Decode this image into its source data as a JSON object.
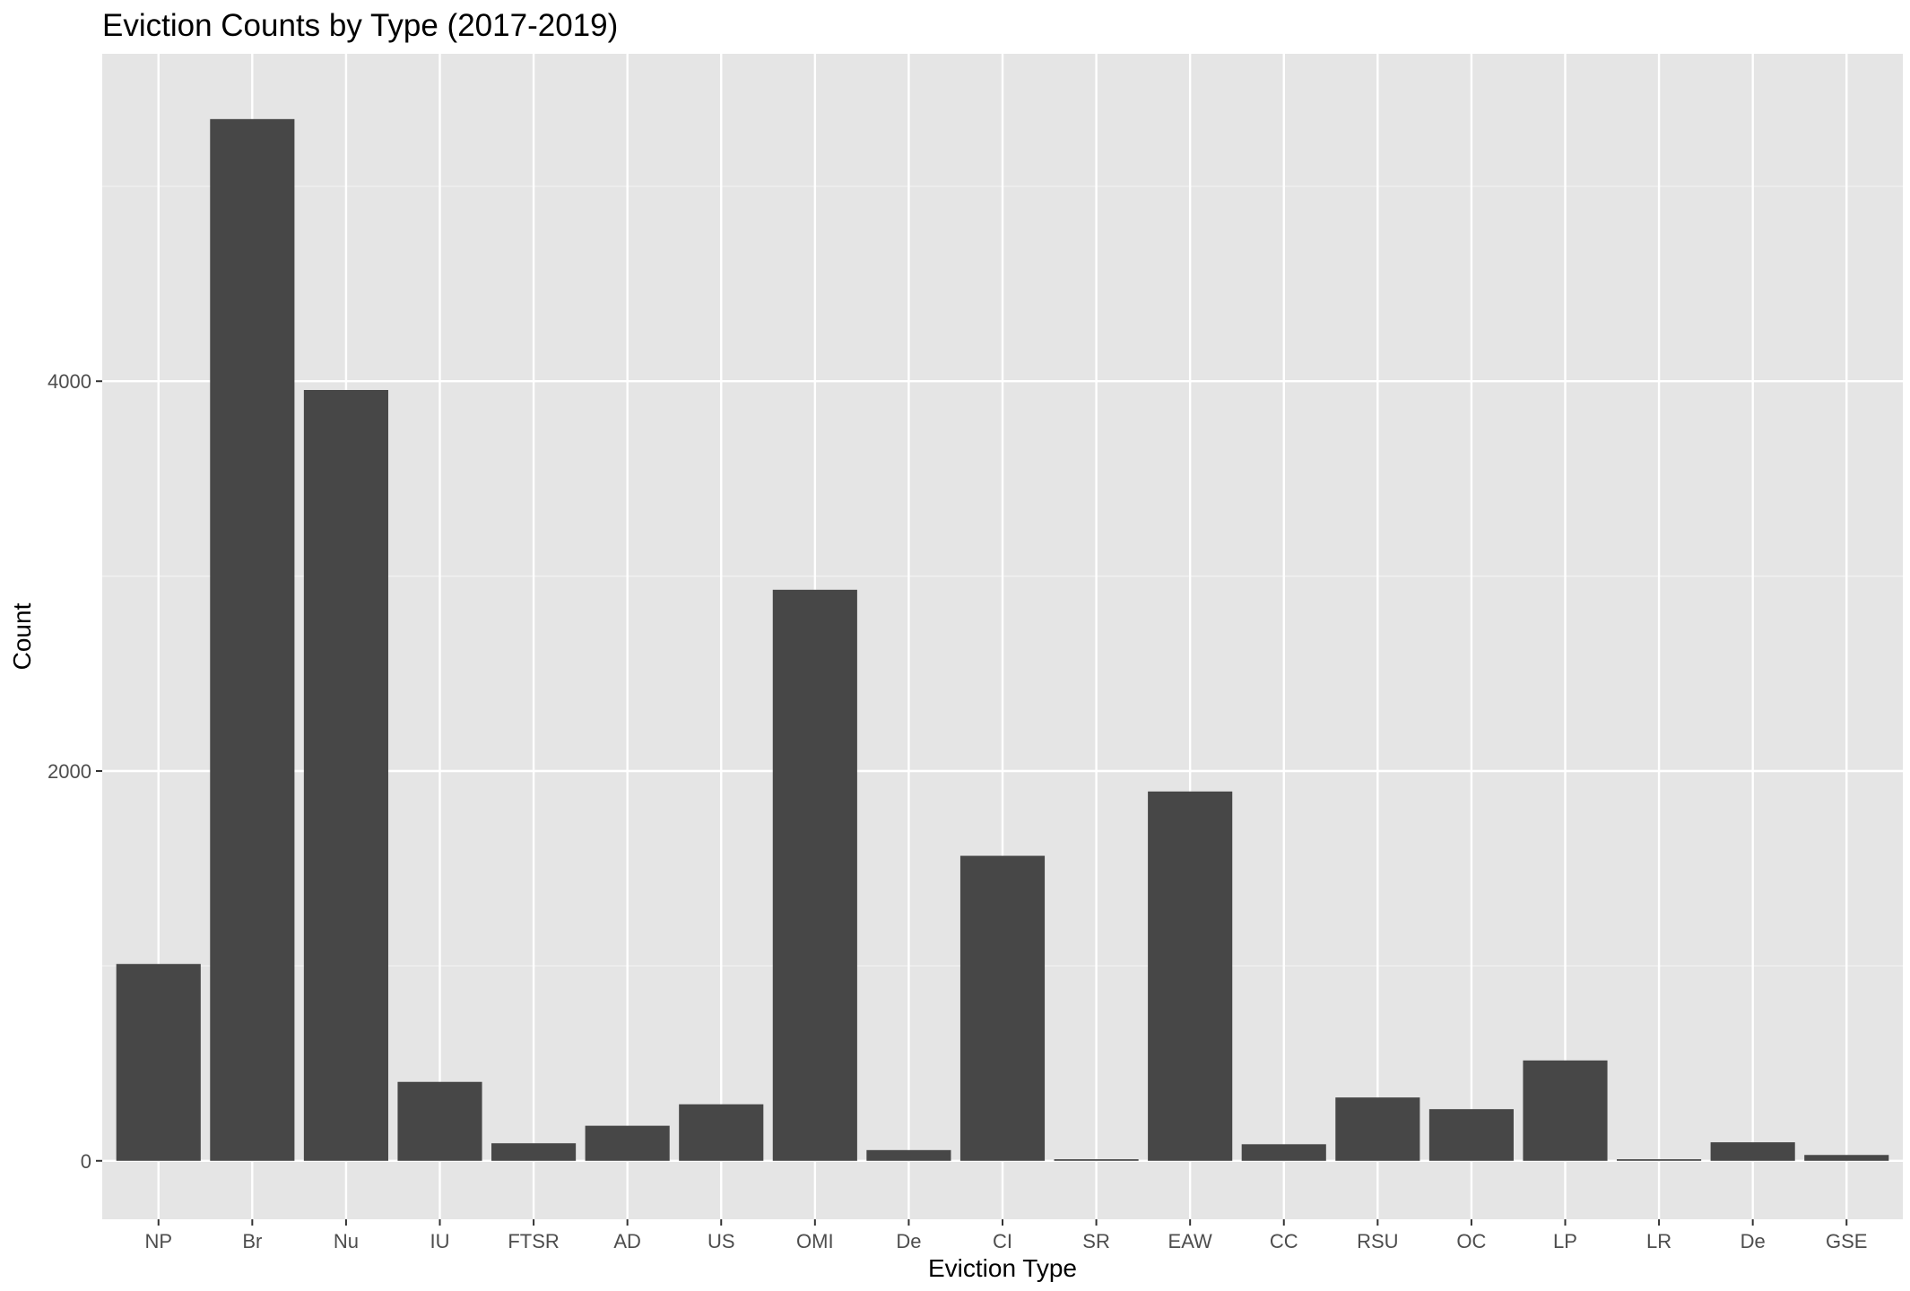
{
  "chart_data": {
    "type": "bar",
    "title": "Eviction Counts by Type (2017-2019)",
    "xlabel": "Eviction Type",
    "ylabel": "Count",
    "categories": [
      "NP",
      "Br",
      "Nu",
      "IU",
      "FTSR",
      "AD",
      "US",
      "OMI",
      "De",
      "CI",
      "SR",
      "EAW",
      "CC",
      "RSU",
      "OC",
      "LP",
      "LR",
      "De",
      "GSE"
    ],
    "values": [
      1010,
      5345,
      3955,
      405,
      90,
      180,
      290,
      2930,
      55,
      1565,
      8,
      1895,
      85,
      325,
      265,
      515,
      8,
      95,
      30
    ],
    "ylim": [
      -300,
      5680
    ],
    "yticks": [
      0,
      2000,
      4000
    ],
    "grid": true,
    "legend": "none",
    "colors": {
      "bar": "#474747",
      "panel": "#e5e5e5",
      "grid_major": "#ffffff",
      "grid_minor": "#f2f2f2"
    }
  }
}
